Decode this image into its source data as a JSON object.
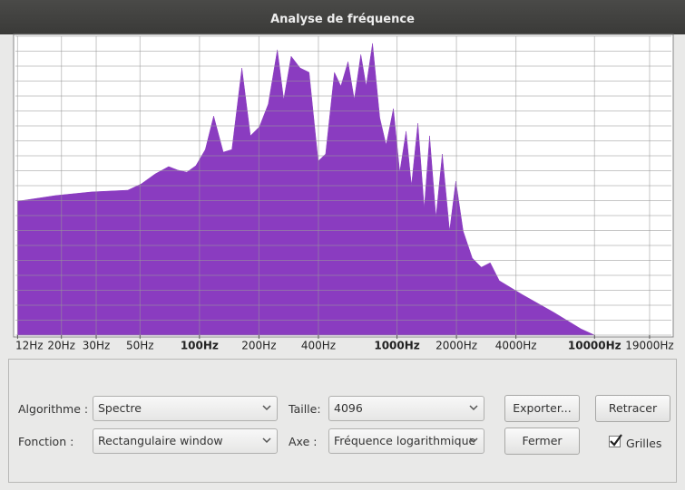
{
  "window": {
    "title": "Analyse de fréquence"
  },
  "chart_data": {
    "type": "area",
    "log_x": true,
    "grid": true,
    "color": "#8a3cc0",
    "x": [
      12,
      18.7,
      28.4,
      43.4,
      50.8,
      59.6,
      69.8,
      77.6,
      86.3,
      95.9,
      107,
      118,
      132,
      146,
      164,
      181,
      201,
      223,
      248,
      267,
      291,
      323,
      359,
      399,
      435,
      482,
      520,
      565,
      608,
      656,
      698,
      752,
      818,
      881,
      959,
      1033,
      1112,
      1184,
      1276,
      1374,
      1463,
      1575,
      1696,
      1845,
      1986,
      2163,
      2404,
      2673,
      2965,
      3296,
      4295,
      6223,
      8531,
      10000
    ],
    "series": [
      {
        "values": [
          44.8,
          46.7,
          47.9,
          48.5,
          50.6,
          53.9,
          56.4,
          55.2,
          54.5,
          56.7,
          62.1,
          73.3,
          61.2,
          62.1,
          89.4,
          66.7,
          69.7,
          77.3,
          95.5,
          78.8,
          93.3,
          89.4,
          87.9,
          58.2,
          60.6,
          87.9,
          83.3,
          91.5,
          78.8,
          93.9,
          83.3,
          97.6,
          72.7,
          63.6,
          75.8,
          54.5,
          68.2,
          50,
          70.9,
          42.4,
          66.7,
          39.4,
          60.6,
          34.8,
          51.5,
          34.8,
          25.8,
          22.7,
          24.2,
          18.2,
          13.6,
          7.6,
          2.1,
          0
        ]
      }
    ],
    "xlim": [
      11.7,
      24500
    ],
    "ylim": [
      0,
      100
    ],
    "xticks": [
      {
        "value": 12,
        "label": "12Hz"
      },
      {
        "value": 20,
        "label": "20Hz"
      },
      {
        "value": 30,
        "label": "30Hz"
      },
      {
        "value": 50,
        "label": "50Hz"
      },
      {
        "value": 100,
        "label": "100Hz"
      },
      {
        "value": 200,
        "label": "200Hz"
      },
      {
        "value": 400,
        "label": "400Hz"
      },
      {
        "value": 1000,
        "label": "1000Hz"
      },
      {
        "value": 2000,
        "label": "2000Hz"
      },
      {
        "value": 4000,
        "label": "4000Hz"
      },
      {
        "value": 10000,
        "label": "10000Hz"
      },
      {
        "value": 19000,
        "label": "19000Hz"
      }
    ],
    "yticks": [
      0,
      5,
      10,
      15,
      20,
      25,
      30,
      35,
      40,
      45,
      50,
      55,
      60,
      65,
      70,
      75,
      80,
      85,
      90,
      95,
      100
    ]
  },
  "controls": {
    "algorithm_label": "Algorithme :",
    "algorithm": "Spectre",
    "size_label": "Taille:",
    "size": "4096",
    "export": "Exporter...",
    "replot": "Retracer",
    "function_label": "Fonction :",
    "function": "Rectangulaire window",
    "axis_label": "Axe :",
    "axis": "Fréquence logarithmique",
    "close": "Fermer",
    "grids": "Grilles",
    "grids_checked": true
  }
}
